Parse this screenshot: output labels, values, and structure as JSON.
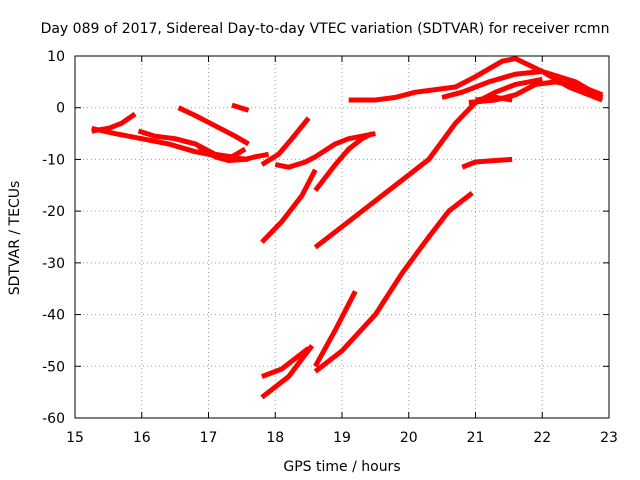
{
  "chart_data": {
    "type": "line",
    "title": "Day 089 of 2017, Sidereal Day-to-day VTEC variation (SDTVAR) for receiver rcmn",
    "xlabel": "GPS time / hours",
    "ylabel": "SDTVAR / TECUs",
    "xlim": [
      15,
      23
    ],
    "ylim": [
      -60,
      10
    ],
    "xticks": [
      "15",
      "16",
      "17",
      "18",
      "19",
      "20",
      "21",
      "22",
      "23"
    ],
    "yticks": [
      "10",
      "0",
      "-10",
      "-20",
      "-30",
      "-40",
      "-50",
      "-60"
    ],
    "grid": true,
    "legend": "none",
    "color": "#ff0000",
    "series": [
      {
        "x": [
          15.25,
          15.5,
          15.7,
          15.9
        ],
        "y": [
          -4.5,
          -4,
          -3,
          -1.2
        ]
      },
      {
        "x": [
          15.25,
          15.6,
          16.0,
          16.4,
          16.8,
          17.2,
          17.6
        ],
        "y": [
          -4,
          -5,
          -6,
          -7,
          -8.5,
          -9.5,
          -10
        ]
      },
      {
        "x": [
          15.95,
          16.2,
          16.5,
          16.8,
          17.1,
          17.35,
          17.55
        ],
        "y": [
          -4.5,
          -5.5,
          -6,
          -7,
          -9,
          -9.5,
          -8
        ]
      },
      {
        "x": [
          16.55,
          16.8,
          17.1,
          17.4,
          17.6
        ],
        "y": [
          0,
          -1.5,
          -3.5,
          -5.5,
          -7
        ]
      },
      {
        "x": [
          17.35,
          17.6
        ],
        "y": [
          0.5,
          -0.5
        ]
      },
      {
        "x": [
          16.85,
          17.1,
          17.3,
          17.55,
          17.7,
          17.9
        ],
        "y": [
          -7.5,
          -9.5,
          -10.2,
          -10,
          -9.5,
          -9
        ]
      },
      {
        "x": [
          17.8,
          18.05,
          18.25,
          18.5
        ],
        "y": [
          -11,
          -9,
          -6,
          -2
        ]
      },
      {
        "x": [
          18.0,
          18.2,
          18.45,
          18.6,
          18.9,
          19.1,
          19.3,
          19.5
        ],
        "y": [
          -11,
          -11.5,
          -10.5,
          -9.5,
          -7,
          -6,
          -5.5,
          -5
        ]
      },
      {
        "x": [
          17.8,
          18.1,
          18.4,
          18.6
        ],
        "y": [
          -26,
          -22,
          -17,
          -12
        ]
      },
      {
        "x": [
          18.6,
          18.9,
          19.1,
          19.3,
          19.45
        ],
        "y": [
          -16,
          -11,
          -8,
          -6,
          -5
        ]
      },
      {
        "x": [
          18.6,
          19.0,
          19.5,
          19.9,
          20.3,
          20.7,
          21.0,
          21.3,
          21.5,
          21.6,
          21.8,
          22.0
        ],
        "y": [
          -27,
          -23,
          -18,
          -14,
          -10,
          -3,
          1,
          3,
          4,
          4.5,
          5,
          5.5
        ]
      },
      {
        "x": [
          19.1,
          19.5,
          19.8,
          20.1,
          20.4,
          20.7,
          21.0,
          21.4,
          21.6,
          22.0,
          22.4,
          22.9
        ],
        "y": [
          1.5,
          1.5,
          2,
          3,
          3.5,
          4,
          6,
          9,
          9.5,
          7,
          4,
          1.5
        ]
      },
      {
        "x": [
          20.5,
          20.8,
          21.2,
          21.6,
          22.0,
          22.5,
          22.9
        ],
        "y": [
          2,
          3,
          5,
          6.5,
          7,
          5,
          2
        ]
      },
      {
        "x": [
          20.9,
          21.3,
          21.6,
          21.9,
          22.2,
          22.6,
          22.9
        ],
        "y": [
          1,
          1.5,
          2.5,
          4.5,
          5,
          4,
          2.5
        ]
      },
      {
        "x": [
          21.0,
          21.3,
          21.55
        ],
        "y": [
          1.5,
          2,
          1.5
        ]
      },
      {
        "x": [
          20.8,
          21.0,
          21.3,
          21.55
        ],
        "y": [
          -11.5,
          -10.5,
          -10.2,
          -10
        ]
      },
      {
        "x": [
          17.8,
          18.1,
          18.5
        ],
        "y": [
          -52,
          -50.5,
          -46.5
        ]
      },
      {
        "x": [
          17.8,
          18.2,
          18.55
        ],
        "y": [
          -56,
          -52,
          -46
        ]
      },
      {
        "x": [
          18.6,
          18.9,
          19.2
        ],
        "y": [
          -50,
          -43,
          -35.5
        ]
      },
      {
        "x": [
          18.6,
          19.0,
          19.5,
          19.9,
          20.3,
          20.6,
          20.95
        ],
        "y": [
          -51,
          -47,
          -40,
          -32,
          -25,
          -20,
          -16.5
        ]
      }
    ]
  }
}
